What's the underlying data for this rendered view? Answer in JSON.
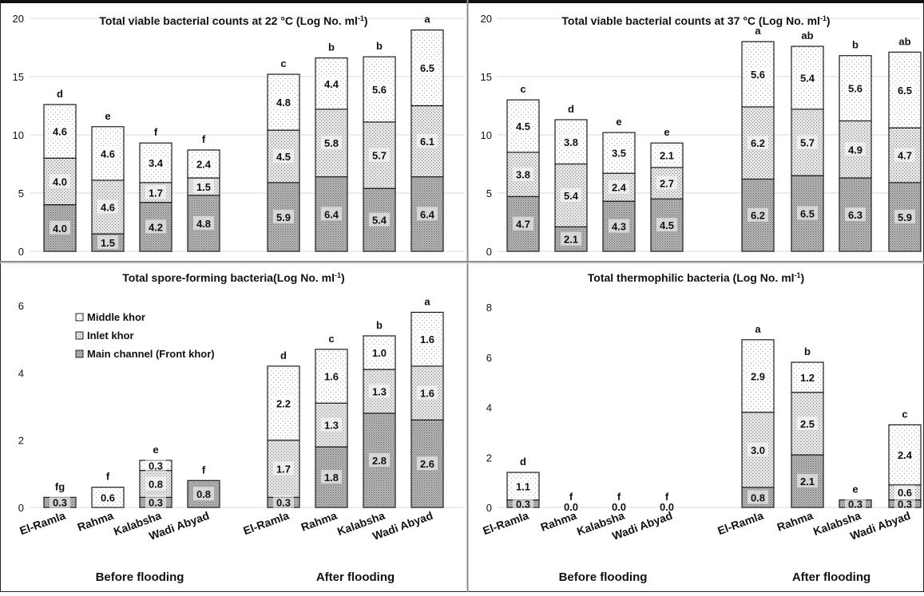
{
  "colors": {
    "main_channel": "#a8a8a8",
    "inlet": "#d8d8d8",
    "middle": "#ffffff",
    "grid": "#d9d9d9",
    "text": "#111111",
    "panel_border": "#8c8c8c"
  },
  "categories": [
    "El-Ramla",
    "Rahma",
    "Kalabsha",
    "Wadi Abyad",
    "El-Ramla",
    "Rahma",
    "Kalabsha",
    "Wadi Abyad"
  ],
  "groups": [
    "Before flooding",
    "After flooding"
  ],
  "legend": [
    "Middle khor",
    "Inlet khor",
    "Main channel (Front khor)"
  ],
  "chart_data": [
    {
      "type": "bar",
      "stacked": true,
      "title": "Total viable bacterial counts at 22 °C (Log No. ml-1)",
      "ylim": [
        0,
        20
      ],
      "yticks": [
        0,
        5,
        10,
        15,
        20
      ],
      "grid": true,
      "series": [
        {
          "name": "Main channel (Front khor)",
          "values": [
            4.0,
            1.5,
            4.2,
            4.8,
            5.9,
            6.4,
            5.4,
            6.4
          ]
        },
        {
          "name": "Inlet khor",
          "values": [
            4.0,
            4.6,
            1.7,
            1.5,
            4.5,
            5.8,
            5.7,
            6.1
          ]
        },
        {
          "name": "Middle khor",
          "values": [
            4.6,
            4.6,
            3.4,
            2.4,
            4.8,
            4.4,
            5.6,
            6.5
          ]
        }
      ],
      "data_labels": [
        [
          "4.0",
          "1.5",
          "4.2",
          "4.8",
          "5.9",
          "6.4",
          "5.4",
          "6.4"
        ],
        [
          "4.0",
          "4.6",
          "1.7",
          "1.5",
          "4.5",
          "5.8",
          "5.7",
          "6.1"
        ],
        [
          "4.6",
          "4.6",
          "3.4",
          "2.4",
          "4.8",
          "4.4",
          "5.6",
          "6.5"
        ]
      ],
      "letters": [
        "d",
        "e",
        "f",
        "f",
        "c",
        "b",
        "b",
        "a"
      ],
      "totals": [
        12.6,
        10.7,
        9.3,
        8.7,
        15.2,
        16.6,
        16.7,
        19.0
      ]
    },
    {
      "type": "bar",
      "stacked": true,
      "title": "Total viable bacterial counts at 37 °C (Log No. ml-1)",
      "ylim": [
        0,
        20
      ],
      "yticks": [
        0,
        5,
        10,
        15,
        20
      ],
      "grid": true,
      "series": [
        {
          "name": "Main channel (Front khor)",
          "values": [
            4.7,
            2.1,
            4.3,
            4.5,
            6.2,
            6.5,
            6.3,
            5.9
          ]
        },
        {
          "name": "Inlet khor",
          "values": [
            3.8,
            5.4,
            2.4,
            2.7,
            6.2,
            5.7,
            4.9,
            4.7
          ]
        },
        {
          "name": "Middle khor",
          "values": [
            4.5,
            3.8,
            3.5,
            2.1,
            5.6,
            5.4,
            5.6,
            6.5
          ]
        }
      ],
      "data_labels": [
        [
          "4.7",
          "2.1",
          "4.3",
          "4.5",
          "6.2",
          "6.5",
          "6.3",
          "5.9"
        ],
        [
          "3.8",
          "5.4",
          "2.4",
          "2.7",
          "6.2",
          "5.7",
          "4.9",
          "4.7"
        ],
        [
          "4.5",
          "3.8",
          "3.5",
          "2.1",
          "5.6",
          "5.4",
          "5.6",
          "6.5"
        ]
      ],
      "letters": [
        "c",
        "d",
        "e",
        "e",
        "a",
        "ab",
        "b",
        "ab"
      ],
      "totals": [
        13.0,
        11.3,
        10.2,
        9.3,
        18.0,
        17.6,
        16.8,
        17.1
      ]
    },
    {
      "type": "bar",
      "stacked": true,
      "title": "Total spore-forming bacteria(Log No. ml-1)",
      "ylim": [
        0,
        6
      ],
      "yticks": [
        0,
        2,
        4,
        6
      ],
      "grid": false,
      "legend_position": "top-left",
      "series": [
        {
          "name": "Main channel (Front khor)",
          "values": [
            0.3,
            0,
            0.3,
            0.8,
            0.3,
            1.8,
            2.8,
            2.6
          ]
        },
        {
          "name": "Inlet khor",
          "values": [
            0,
            0,
            0.8,
            0,
            1.7,
            1.3,
            1.3,
            1.6
          ]
        },
        {
          "name": "Middle khor",
          "values": [
            0,
            0.6,
            0.3,
            0,
            2.2,
            1.6,
            1.0,
            1.6
          ]
        }
      ],
      "data_labels": [
        [
          "0.3",
          "",
          "0.3",
          "0.8",
          "0.3",
          "1.8",
          "2.8",
          "2.6"
        ],
        [
          "",
          "",
          "0.8",
          "",
          "1.7",
          "1.3",
          "1.3",
          "1.6"
        ],
        [
          "",
          "0.6",
          "0.3",
          "",
          "2.2",
          "1.6",
          "1.0",
          "1.6"
        ]
      ],
      "letters": [
        "fg",
        "f",
        "e",
        "f",
        "d",
        "c",
        "b",
        "a"
      ],
      "totals": [
        0.3,
        0.6,
        1.4,
        0.8,
        4.1,
        4.6,
        5.1,
        5.8
      ]
    },
    {
      "type": "bar",
      "stacked": true,
      "title": "Total thermophilic bacteria (Log No. ml-1)",
      "ylim": [
        0,
        8
      ],
      "yticks": [
        0,
        2,
        4,
        6,
        8
      ],
      "grid": false,
      "series": [
        {
          "name": "Main channel (Front khor)",
          "values": [
            0.3,
            0,
            0,
            0,
            0.8,
            2.1,
            0.3,
            0.3
          ]
        },
        {
          "name": "Inlet khor",
          "values": [
            0,
            0,
            0,
            0,
            3.0,
            2.5,
            0,
            0.6
          ]
        },
        {
          "name": "Middle khor",
          "values": [
            1.1,
            0,
            0,
            0,
            2.9,
            1.2,
            0,
            2.4
          ]
        }
      ],
      "data_labels": [
        [
          "0.3",
          "0.0",
          "0.0",
          "0.0",
          "0.8",
          "2.1",
          "0.3",
          "0.3"
        ],
        [
          "",
          "",
          "",
          "",
          "3.0",
          "2.5",
          "",
          "0.6"
        ],
        [
          "1.1",
          "",
          "",
          "",
          "2.9",
          "1.2",
          "",
          "2.4"
        ]
      ],
      "letters": [
        "d",
        "f",
        "f",
        "f",
        "a",
        "b",
        "e",
        "c"
      ],
      "totals": [
        1.4,
        0,
        0,
        0,
        6.7,
        5.8,
        0.3,
        3.3
      ]
    }
  ]
}
